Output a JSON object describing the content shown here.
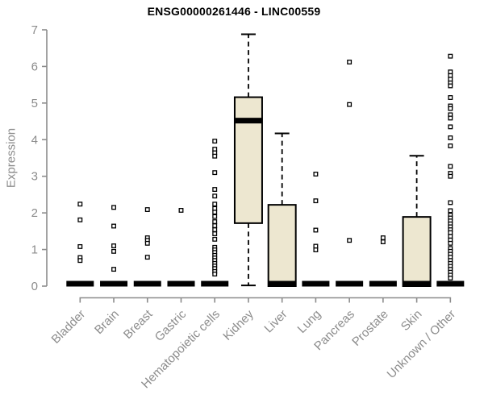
{
  "chart_data": {
    "type": "boxplot",
    "title": "ENSG00000261446 - LINC00559",
    "ylabel": "Expression",
    "xlabel": "",
    "ylim": [
      0,
      7
    ],
    "yticks": [
      0,
      1,
      2,
      3,
      4,
      5,
      6,
      7
    ],
    "grid": false,
    "legend": false,
    "categories": [
      "Bladder",
      "Brain",
      "Breast",
      "Gastric",
      "Hematopoietic cells",
      "Kidney",
      "Liver",
      "Lung",
      "Pancreas",
      "Prostate",
      "Skin",
      "Unknown / Other"
    ],
    "boxes": [
      {
        "category": "Bladder",
        "median": 0,
        "q1": 0,
        "q3": 0,
        "whisker_low": 0,
        "whisker_high": 0,
        "outliers": [
          2.24,
          1.81,
          1.08,
          0.78,
          0.7
        ]
      },
      {
        "category": "Brain",
        "median": 0,
        "q1": 0,
        "q3": 0,
        "whisker_low": 0,
        "whisker_high": 0,
        "outliers": [
          2.15,
          1.64,
          1.1,
          0.95,
          0.46
        ]
      },
      {
        "category": "Breast",
        "median": 0,
        "q1": 0,
        "q3": 0,
        "whisker_low": 0,
        "whisker_high": 0,
        "outliers": [
          2.09,
          1.32,
          1.25,
          1.17,
          0.79
        ]
      },
      {
        "category": "Gastric",
        "median": 0,
        "q1": 0,
        "q3": 0,
        "whisker_low": 0,
        "whisker_high": 0,
        "outliers": [
          2.07
        ]
      },
      {
        "category": "Hematopoietic cells",
        "median": 0,
        "q1": 0,
        "q3": 0,
        "whisker_low": 0,
        "whisker_high": 0,
        "outliers": [
          3.96,
          3.74,
          3.64,
          3.55,
          3.1,
          2.64,
          2.46,
          2.24,
          2.12,
          2.02,
          1.9,
          1.76,
          1.65,
          1.54,
          1.43,
          1.28,
          1.06,
          0.99,
          0.92,
          0.84,
          0.77,
          0.7,
          0.62,
          0.55,
          0.48,
          0.4,
          0.33
        ]
      },
      {
        "category": "Kidney",
        "median": 4.52,
        "q1": 1.72,
        "q3": 5.16,
        "whisker_low": 0.02,
        "whisker_high": 6.88,
        "outliers": []
      },
      {
        "category": "Liver",
        "median": 0,
        "q1": 0,
        "q3": 2.22,
        "whisker_low": 0,
        "whisker_high": 4.17,
        "outliers": []
      },
      {
        "category": "Lung",
        "median": 0,
        "q1": 0,
        "q3": 0,
        "whisker_low": 0,
        "whisker_high": 0,
        "outliers": [
          3.06,
          2.33,
          1.53,
          1.09,
          0.99
        ]
      },
      {
        "category": "Pancreas",
        "median": 0,
        "q1": 0,
        "q3": 0,
        "whisker_low": 0,
        "whisker_high": 0,
        "outliers": [
          6.12,
          4.96,
          1.25
        ]
      },
      {
        "category": "Prostate",
        "median": 0,
        "q1": 0,
        "q3": 0,
        "whisker_low": 0,
        "whisker_high": 0,
        "outliers": [
          1.32,
          1.21
        ]
      },
      {
        "category": "Skin",
        "median": 0,
        "q1": 0,
        "q3": 1.89,
        "whisker_low": 0,
        "whisker_high": 3.56,
        "outliers": []
      },
      {
        "category": "Unknown / Other",
        "median": 0,
        "q1": 0,
        "q3": 0,
        "whisker_low": 0,
        "whisker_high": 0,
        "outliers": [
          6.28,
          5.85,
          5.75,
          5.65,
          5.55,
          5.47,
          5.15,
          4.92,
          4.85,
          4.68,
          4.59,
          4.35,
          4.05,
          3.83,
          3.27,
          3.08,
          3.0,
          2.28,
          2.06,
          1.94,
          1.86,
          1.78,
          1.7,
          1.62,
          1.54,
          1.46,
          1.36,
          1.26,
          1.17,
          1.03,
          0.95,
          0.87,
          0.79,
          0.7,
          0.62,
          0.54,
          0.46,
          0.38,
          0.3,
          0.22
        ]
      }
    ]
  },
  "colors": {
    "box_fill": "#EDE7D0",
    "box_stroke": "#000000",
    "median": "#000000",
    "whisker": "#000000",
    "outlier_stroke": "#000000",
    "outlier_fill": "#FFFFFF",
    "axis": "#8C8C8C",
    "tick_label": "#8C8C8C",
    "title": "#000000",
    "background": "#FFFFFF"
  }
}
